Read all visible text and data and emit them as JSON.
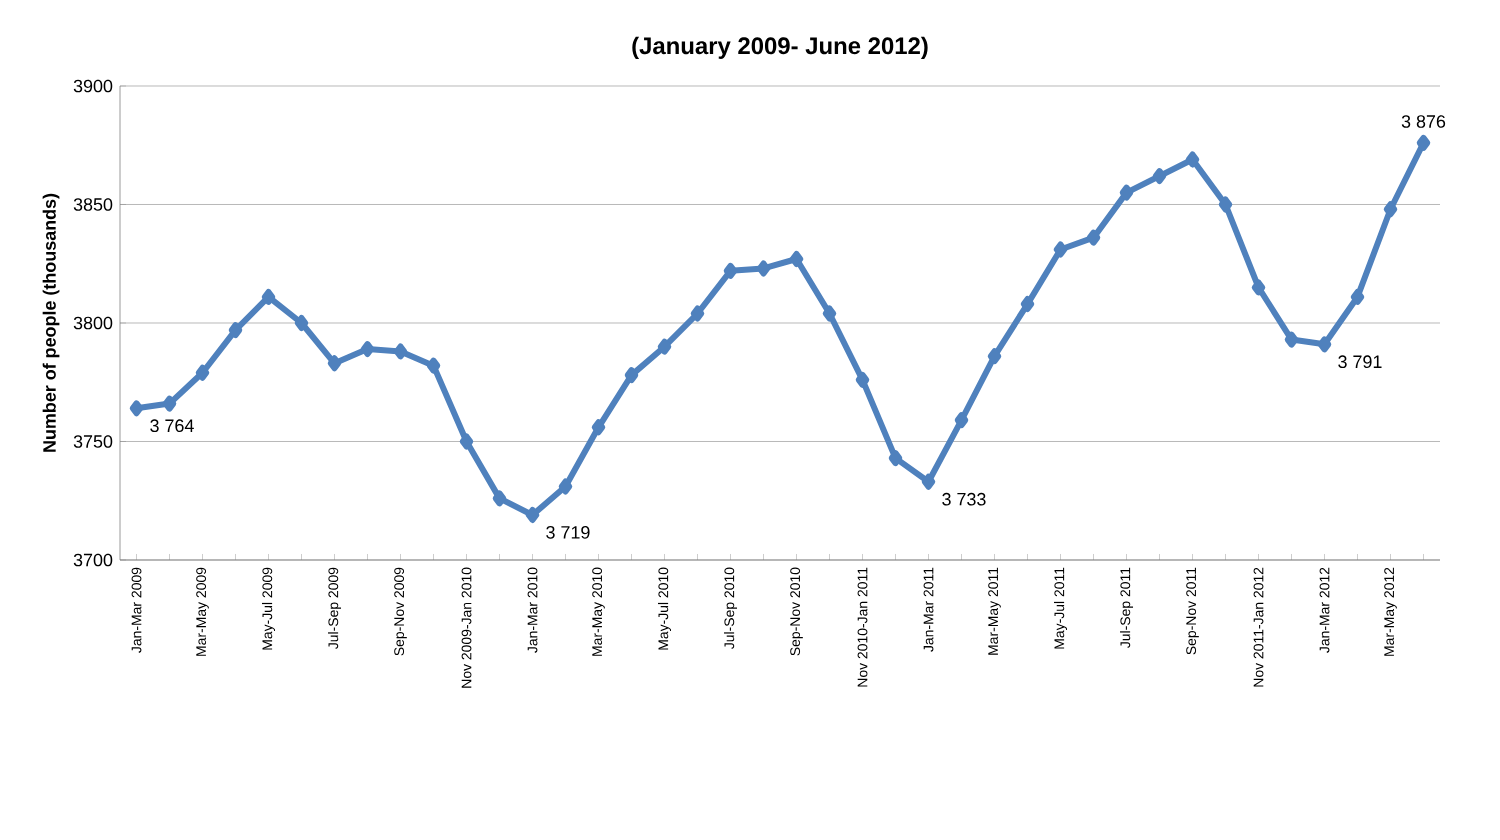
{
  "chart_data": {
    "type": "line",
    "title": "(January 2009- June 2012)",
    "ylabel": "Number of people (thousands)",
    "categories": [
      "Jan-Mar 2009",
      null,
      "Mar-May 2009",
      null,
      "May-Jul 2009",
      null,
      "Jul-Sep 2009",
      null,
      "Sep-Nov 2009",
      null,
      "Nov 2009-Jan 2010",
      null,
      "Jan-Mar 2010",
      null,
      "Mar-May 2010",
      null,
      "May-Jul 2010",
      null,
      "Jul-Sep 2010",
      null,
      "Sep-Nov 2010",
      null,
      "Nov 2010-Jan 2011",
      null,
      "Jan-Mar 2011",
      null,
      "Mar-May 2011",
      null,
      "May-Jul 2011",
      null,
      "Jul-Sep 2011",
      null,
      "Sep-Nov 2011",
      null,
      "Nov 2011-Jan 2012",
      null,
      "Jan-Mar 2012",
      null,
      "Mar-May 2012",
      null
    ],
    "series": [
      {
        "color": "#4f81bd",
        "values": [
          3764,
          3766,
          3779,
          3797,
          3811,
          3800,
          3783,
          3789,
          3788,
          3782,
          3750,
          3726,
          3719,
          3731,
          3756,
          3778,
          3790,
          3804,
          3822,
          3823,
          3827,
          3804,
          3776,
          3743,
          3733,
          3759,
          3786,
          3808,
          3831,
          3836,
          3855,
          3862,
          3869,
          3850,
          3815,
          3793,
          3791,
          3811,
          3848,
          3876
        ],
        "value_labels": [
          "3 764",
          null,
          null,
          null,
          null,
          null,
          null,
          null,
          null,
          null,
          null,
          null,
          "3 719",
          null,
          null,
          null,
          null,
          null,
          null,
          null,
          null,
          null,
          null,
          null,
          "3 733",
          null,
          null,
          null,
          null,
          null,
          null,
          null,
          null,
          null,
          null,
          null,
          "3 791",
          null,
          null,
          "3 876"
        ]
      }
    ],
    "ylim": [
      3700,
      3900
    ],
    "yticks": [
      3700,
      3750,
      3800,
      3850,
      3900
    ],
    "grid": "y",
    "marker": "diamond",
    "line_style": "solid"
  }
}
